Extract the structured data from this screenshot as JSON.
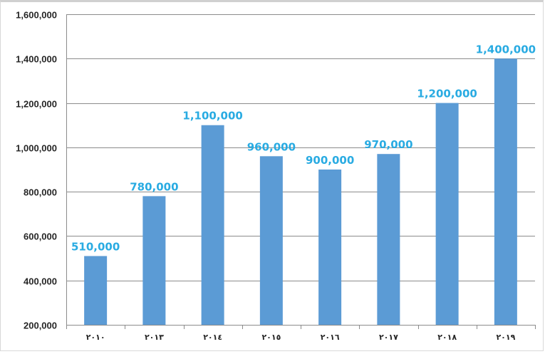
{
  "chart_data": {
    "type": "bar",
    "title": "",
    "xlabel": "",
    "ylabel": "",
    "categories": [
      "٢٠١٠",
      "٢٠١٣",
      "٢٠١٤",
      "٢٠١٥",
      "٢٠١٦",
      "٢٠١٧",
      "٢٠١٨",
      "٢٠١٩"
    ],
    "values": [
      510000,
      780000,
      1100000,
      960000,
      900000,
      970000,
      1200000,
      1400000
    ],
    "data_labels": [
      "510,000",
      "780,000",
      "1,100,000",
      "960,000",
      "900,000",
      "970,000",
      "1,200,000",
      "1,400,000"
    ],
    "ylim": [
      200000,
      1600000
    ],
    "yticks": [
      200000,
      400000,
      600000,
      800000,
      1000000,
      1200000,
      1400000,
      1600000
    ],
    "ytick_labels": [
      "200,000",
      "400,000",
      "600,000",
      "800,000",
      "1,000,000",
      "1,200,000",
      "1,400,000",
      "1,600,000"
    ],
    "grid": true,
    "legend": "none",
    "bar_color": "#5b9bd5",
    "label_color": "#29abe2",
    "grid_color": "#8c8c8c"
  }
}
